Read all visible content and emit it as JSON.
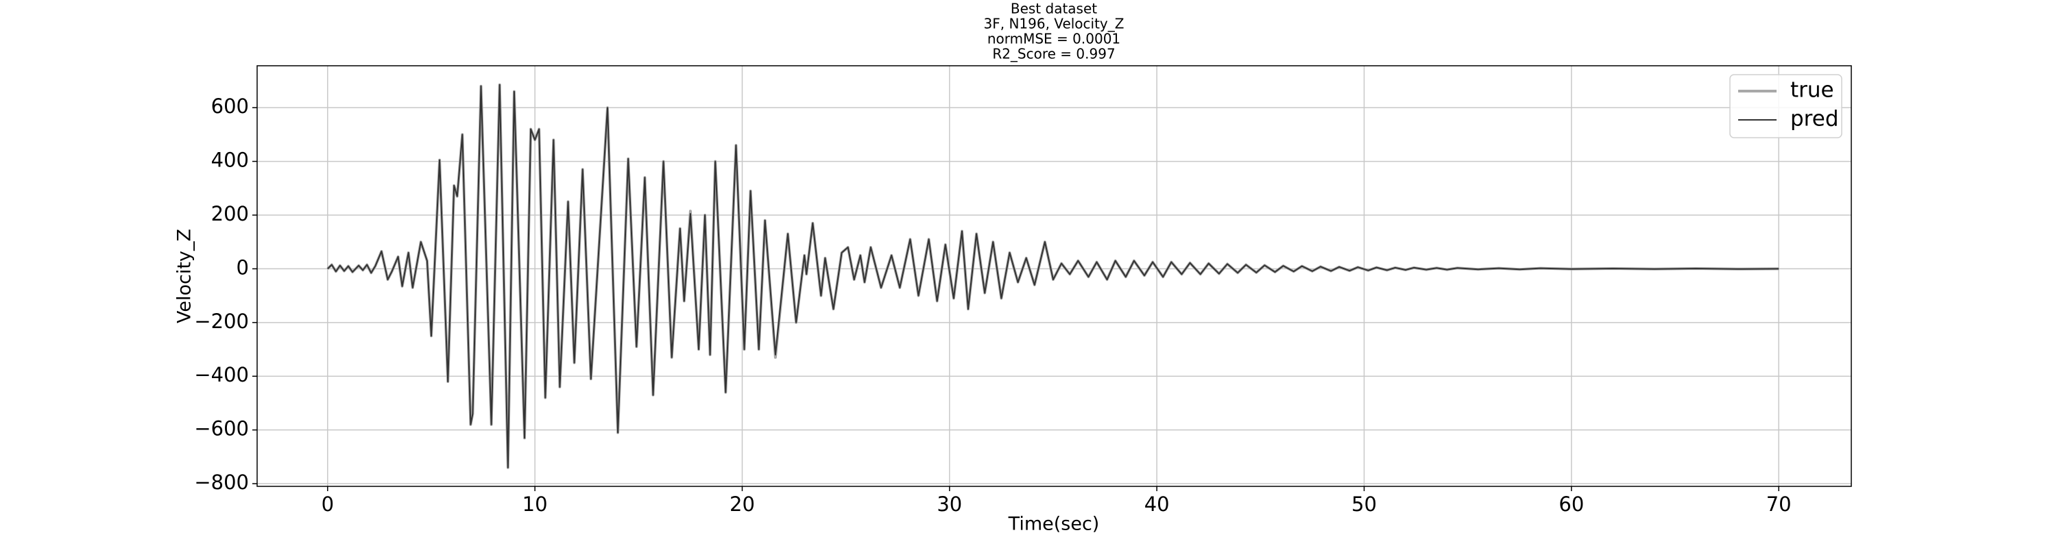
{
  "chart_data": {
    "type": "line",
    "title": [
      "Best dataset",
      "3F, N196, Velocity_Z",
      "normMSE = 0.0001",
      "R2_Score = 0.997"
    ],
    "xlabel": "Time(sec)",
    "ylabel": "Velocity_Z",
    "x": [
      0,
      0.2,
      0.4,
      0.6,
      0.8,
      1.0,
      1.2,
      1.5,
      1.7,
      1.9,
      2.1,
      2.3,
      2.6,
      2.9,
      3.1,
      3.4,
      3.6,
      3.8,
      3.9,
      4.1,
      4.5,
      4.8,
      5.0,
      5.4,
      5.8,
      6.1,
      6.25,
      6.5,
      6.9,
      7.0,
      7.4,
      7.9,
      8.3,
      8.7,
      9.0,
      9.5,
      9.8,
      10.0,
      10.2,
      10.5,
      10.9,
      11.2,
      11.6,
      11.9,
      12.3,
      12.7,
      13.5,
      14.0,
      14.5,
      14.9,
      15.3,
      15.7,
      16.2,
      16.6,
      17.0,
      17.2,
      17.5,
      17.9,
      18.2,
      18.45,
      18.7,
      19.2,
      19.7,
      20.1,
      20.4,
      20.8,
      21.1,
      21.6,
      22.2,
      22.6,
      23.0,
      23.1,
      23.4,
      23.8,
      24.0,
      24.4,
      24.8,
      25.1,
      25.4,
      25.7,
      25.9,
      26.2,
      26.7,
      27.2,
      27.6,
      28.1,
      28.5,
      29.0,
      29.4,
      29.8,
      30.2,
      30.6,
      30.9,
      31.3,
      31.7,
      32.1,
      32.5,
      32.9,
      33.3,
      33.7,
      34.1,
      34.6,
      35.0,
      35.4,
      35.8,
      36.2,
      36.7,
      37.1,
      37.6,
      38.0,
      38.5,
      38.9,
      39.4,
      39.8,
      40.3,
      40.7,
      41.2,
      41.6,
      42.1,
      42.5,
      43.0,
      43.4,
      43.9,
      44.3,
      44.8,
      45.2,
      45.7,
      46.1,
      46.6,
      47.0,
      47.5,
      47.9,
      48.4,
      48.8,
      49.3,
      49.7,
      50.2,
      50.6,
      51.1,
      51.5,
      52.0,
      52.4,
      53.0,
      53.5,
      54.0,
      54.5,
      55.5,
      56.5,
      57.5,
      58.5,
      60,
      62,
      64,
      66,
      68,
      70
    ],
    "series": [
      {
        "name": "true",
        "color": "#a8a8a8",
        "width": 4,
        "values": [
          0,
          15,
          -10,
          12,
          -8,
          10,
          -12,
          12,
          -5,
          15,
          -15,
          10,
          65,
          -40,
          -10,
          45,
          -65,
          20,
          60,
          -70,
          100,
          30,
          -250,
          405,
          -420,
          310,
          270,
          500,
          -580,
          -540,
          680,
          -580,
          685,
          -740,
          660,
          -630,
          520,
          480,
          520,
          -480,
          480,
          -440,
          250,
          -350,
          370,
          -410,
          600,
          -610,
          410,
          -290,
          340,
          -470,
          400,
          -330,
          150,
          -120,
          215,
          -300,
          200,
          -320,
          400,
          -460,
          460,
          -300,
          290,
          -300,
          180,
          -330,
          130,
          -200,
          50,
          -20,
          170,
          -100,
          40,
          -150,
          60,
          80,
          -40,
          50,
          -50,
          80,
          -70,
          50,
          -70,
          110,
          -100,
          110,
          -120,
          90,
          -110,
          140,
          -150,
          130,
          -90,
          100,
          -110,
          60,
          -50,
          40,
          -60,
          100,
          -40,
          20,
          -20,
          30,
          -30,
          25,
          -40,
          30,
          -30,
          30,
          -25,
          25,
          -30,
          25,
          -20,
          22,
          -20,
          20,
          -18,
          18,
          -15,
          15,
          -14,
          13,
          -12,
          11,
          -10,
          10,
          -9,
          8,
          -8,
          7,
          -7,
          6,
          -6,
          5,
          -5,
          4,
          -4,
          4,
          -3,
          3,
          -3,
          3,
          -2,
          2,
          -2,
          2,
          -1,
          1,
          -1,
          1,
          -1,
          0
        ]
      },
      {
        "name": "pred",
        "color": "#333333",
        "width": 2,
        "values": [
          0,
          15,
          -10,
          12,
          -8,
          10,
          -12,
          12,
          -5,
          15,
          -15,
          10,
          65,
          -40,
          -10,
          45,
          -65,
          20,
          60,
          -70,
          100,
          30,
          -250,
          405,
          -420,
          310,
          270,
          500,
          -580,
          -540,
          680,
          -580,
          685,
          -740,
          660,
          -630,
          520,
          480,
          520,
          -480,
          480,
          -440,
          250,
          -350,
          370,
          -410,
          600,
          -610,
          410,
          -290,
          340,
          -470,
          400,
          -330,
          150,
          -120,
          205,
          -300,
          200,
          -320,
          400,
          -460,
          460,
          -300,
          290,
          -300,
          180,
          -320,
          130,
          -200,
          50,
          -20,
          170,
          -100,
          40,
          -150,
          60,
          80,
          -40,
          50,
          -50,
          80,
          -70,
          50,
          -70,
          110,
          -100,
          110,
          -120,
          90,
          -110,
          140,
          -150,
          130,
          -90,
          100,
          -110,
          60,
          -50,
          40,
          -60,
          100,
          -40,
          20,
          -20,
          30,
          -30,
          25,
          -40,
          30,
          -30,
          30,
          -25,
          25,
          -30,
          25,
          -20,
          22,
          -20,
          20,
          -18,
          18,
          -15,
          15,
          -14,
          13,
          -12,
          11,
          -10,
          10,
          -9,
          8,
          -8,
          7,
          -7,
          6,
          -6,
          5,
          -5,
          4,
          -4,
          4,
          -3,
          3,
          -3,
          3,
          -2,
          2,
          -2,
          2,
          -1,
          1,
          -1,
          1,
          -1,
          0
        ]
      }
    ],
    "xlim": [
      -3.4,
      73.5
    ],
    "xticks": [
      0,
      10,
      20,
      30,
      40,
      50,
      60,
      70
    ],
    "ylim": [
      -810,
      756
    ],
    "yticks": [
      {
        "value": -800,
        "label": "−800"
      },
      {
        "value": -600,
        "label": "−600"
      },
      {
        "value": -400,
        "label": "−400"
      },
      {
        "value": -200,
        "label": "−200"
      },
      0,
      200,
      400,
      600
    ],
    "grid": true,
    "legend": "upper right"
  }
}
